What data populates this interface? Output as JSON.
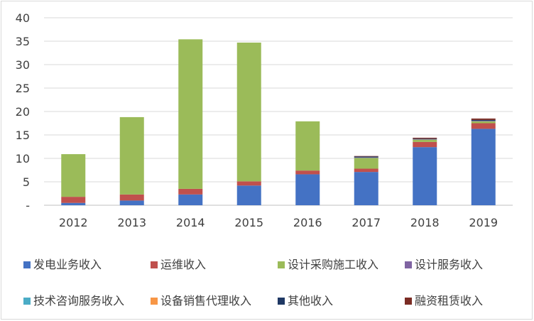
{
  "chart_data": {
    "type": "bar",
    "stacked": true,
    "title": "",
    "xlabel": "",
    "ylabel": "",
    "ylim": [
      0,
      40
    ],
    "yticks": [
      0,
      5,
      10,
      15,
      20,
      25,
      30,
      35,
      40
    ],
    "ytick_labels": [
      "-",
      "5",
      "10",
      "15",
      "20",
      "25",
      "30",
      "35",
      "40"
    ],
    "grid": "horizontal",
    "legend_position": "bottom",
    "categories": [
      "2012",
      "2013",
      "2014",
      "2015",
      "2016",
      "2017",
      "2018",
      "2019"
    ],
    "series": [
      {
        "name": "发电业务收入",
        "color": "#4472c4",
        "values": [
          0.5,
          1.0,
          2.3,
          4.2,
          6.6,
          7.1,
          12.4,
          16.3
        ]
      },
      {
        "name": "运维收入",
        "color": "#c0504d",
        "values": [
          1.3,
          1.3,
          1.2,
          0.9,
          0.8,
          0.7,
          1.1,
          1.2
        ]
      },
      {
        "name": "设计采购施工收入",
        "color": "#9bbb59",
        "values": [
          9.1,
          16.5,
          31.9,
          29.6,
          10.5,
          2.3,
          0.5,
          0.4
        ]
      },
      {
        "name": "设计服务收入",
        "color": "#8064a2",
        "values": [
          0,
          0,
          0,
          0,
          0,
          0.1,
          0.1,
          0.1
        ]
      },
      {
        "name": "技术咨询服务收入",
        "color": "#4bacc6",
        "values": [
          0,
          0,
          0,
          0,
          0,
          0,
          0,
          0
        ]
      },
      {
        "name": "设备销售代理收入",
        "color": "#f79646",
        "values": [
          0,
          0,
          0,
          0,
          0,
          0,
          0,
          0
        ]
      },
      {
        "name": "其他收入",
        "color": "#1f3864",
        "values": [
          0,
          0,
          0,
          0,
          0,
          0.2,
          0.1,
          0.2
        ]
      },
      {
        "name": "融资租赁收入",
        "color": "#7b2c24",
        "values": [
          0,
          0,
          0,
          0,
          0,
          0.1,
          0.2,
          0.3
        ]
      }
    ]
  }
}
